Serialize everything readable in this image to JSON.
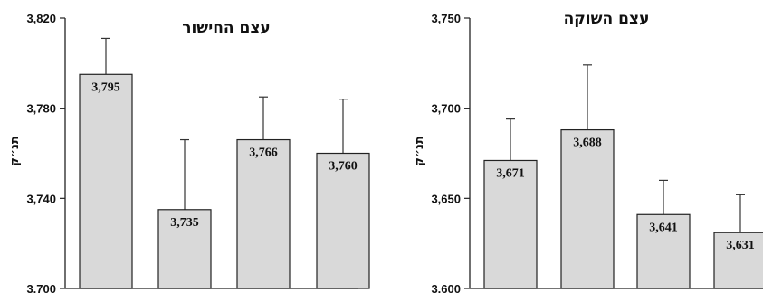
{
  "chart_data": [
    {
      "type": "bar",
      "title": "עצם החישור",
      "ylabel": "תנ״ק",
      "ylim": [
        3700,
        3820
      ],
      "yticks": [
        3700,
        3740,
        3780,
        3820
      ],
      "ytick_labels": [
        "3,700",
        "3,740",
        "3,780",
        "3,820"
      ],
      "values": [
        3795,
        3735,
        3766,
        3760
      ],
      "value_labels": [
        "3,795",
        "3,735",
        "3,766",
        "3,760"
      ],
      "error_upper": [
        3811,
        3766,
        3785,
        3784
      ],
      "grid": false,
      "bar_color": "#d9d9d9"
    },
    {
      "type": "bar",
      "title": "עצם השוקה",
      "ylabel": "תנ״ק",
      "ylim": [
        3600,
        3750
      ],
      "yticks": [
        3600,
        3650,
        3700,
        3750
      ],
      "ytick_labels": [
        "3,600",
        "3,650",
        "3,700",
        "3,750"
      ],
      "values": [
        3671,
        3688,
        3641,
        3631
      ],
      "value_labels": [
        "3,671",
        "3,688",
        "3,641",
        "3,631"
      ],
      "error_upper": [
        3694,
        3724,
        3660,
        3652
      ],
      "grid": false,
      "bar_color": "#d9d9d9"
    }
  ]
}
